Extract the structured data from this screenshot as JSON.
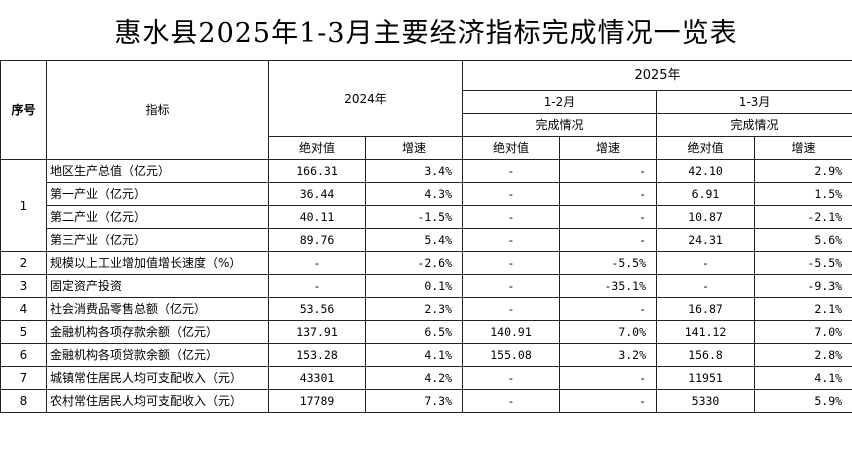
{
  "title": "惠水县2025年1-3月主要经济指标完成情况一览表",
  "header": {
    "seq": "序号",
    "indicator": "指标",
    "y2024": "2024年",
    "y2025": "2025年",
    "p1": "1-2月",
    "p2": "1-3月",
    "status": "完成情况",
    "abs": "绝对值",
    "growth": "增速"
  },
  "rows": [
    {
      "seq": "1",
      "name": "地区生产总值（亿元）",
      "a24": "166.31",
      "g24": "3.4%",
      "a12": "-",
      "g12": "-",
      "a13": "42.10",
      "g13": "2.9%"
    },
    {
      "seq": "",
      "name": "第一产业（亿元）",
      "a24": "36.44",
      "g24": "4.3%",
      "a12": "-",
      "g12": "-",
      "a13": "6.91",
      "g13": "1.5%"
    },
    {
      "seq": "",
      "name": "第二产业（亿元）",
      "a24": "40.11",
      "g24": "-1.5%",
      "a12": "-",
      "g12": "-",
      "a13": "10.87",
      "g13": "-2.1%"
    },
    {
      "seq": "",
      "name": "第三产业（亿元）",
      "a24": "89.76",
      "g24": "5.4%",
      "a12": "-",
      "g12": "-",
      "a13": "24.31",
      "g13": "5.6%"
    },
    {
      "seq": "2",
      "name": "规模以上工业增加值增长速度（%）",
      "a24": "-",
      "g24": "-2.6%",
      "a12": "-",
      "g12": "-5.5%",
      "a13": "-",
      "g13": "-5.5%"
    },
    {
      "seq": "3",
      "name": "固定资产投资",
      "a24": "-",
      "g24": "0.1%",
      "a12": "-",
      "g12": "-35.1%",
      "a13": "-",
      "g13": "-9.3%"
    },
    {
      "seq": "4",
      "name": "社会消费品零售总额（亿元）",
      "a24": "53.56",
      "g24": "2.3%",
      "a12": "-",
      "g12": "-",
      "a13": "16.87",
      "g13": "2.1%"
    },
    {
      "seq": "5",
      "name": "金融机构各项存款余额（亿元）",
      "a24": "137.91",
      "g24": "6.5%",
      "a12": "140.91",
      "g12": "7.0%",
      "a13": "141.12",
      "g13": "7.0%"
    },
    {
      "seq": "6",
      "name": "金融机构各项贷款余额（亿元）",
      "a24": "153.28",
      "g24": "4.1%",
      "a12": "155.08",
      "g12": "3.2%",
      "a13": "156.8",
      "g13": "2.8%"
    },
    {
      "seq": "7",
      "name": "城镇常住居民人均可支配收入（元）",
      "a24": "43301",
      "g24": "4.2%",
      "a12": "-",
      "g12": "-",
      "a13": "11951",
      "g13": "4.1%"
    },
    {
      "seq": "8",
      "name": "农村常住居民人均可支配收入（元）",
      "a24": "17789",
      "g24": "7.3%",
      "a12": "-",
      "g12": "-",
      "a13": "5330",
      "g13": "5.9%"
    }
  ]
}
